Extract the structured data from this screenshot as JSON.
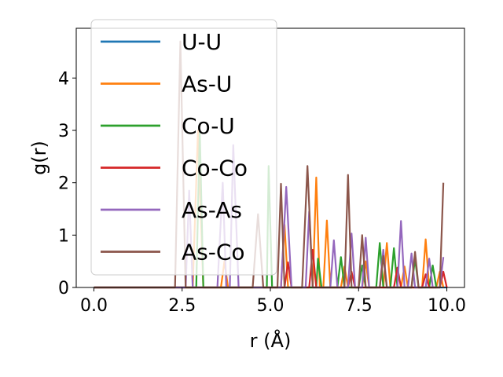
{
  "chart_data": {
    "type": "line",
    "title": "",
    "xlabel": "r (Å)",
    "ylabel": "g(r)",
    "xlim": [
      -0.5,
      10.5
    ],
    "ylim": [
      0,
      4.95
    ],
    "xticks": [
      0.0,
      2.5,
      5.0,
      7.5,
      10.0
    ],
    "xtick_labels": [
      "0.0",
      "2.5",
      "5.0",
      "7.5",
      "10.0"
    ],
    "yticks": [
      0,
      1,
      2,
      3,
      4
    ],
    "ytick_labels": [
      "0",
      "1",
      "2",
      "3",
      "4"
    ],
    "grid": false,
    "legend_position": "upper-left",
    "series": [
      {
        "name": "U-U",
        "color": "#1f77b4",
        "x": [
          0.0,
          2.4,
          2.5,
          10.0
        ],
        "y": [
          0.0,
          0.0,
          0.0,
          0.0
        ]
      },
      {
        "name": "As-U",
        "color": "#ff7f0e",
        "x": [
          0.0,
          2.8,
          2.95,
          3.1,
          3.6,
          3.7,
          3.8,
          5.3,
          5.4,
          5.5,
          6.2,
          6.3,
          6.4,
          6.5,
          6.6,
          6.7,
          7.0,
          7.1,
          7.2,
          7.6,
          7.7,
          7.8,
          8.0,
          8.2,
          8.3,
          8.4,
          8.7,
          8.8,
          8.9,
          9.3,
          9.4,
          9.5,
          9.7,
          9.8,
          9.9
        ],
        "y": [
          0.0,
          0.0,
          3.0,
          0.0,
          0.0,
          0.5,
          0.0,
          0.0,
          1.2,
          0.0,
          0.0,
          2.1,
          0.0,
          0.0,
          1.28,
          0.0,
          0.0,
          0.4,
          0.0,
          0.0,
          0.5,
          0.0,
          0.0,
          0.0,
          0.85,
          0.0,
          0.0,
          0.4,
          0.0,
          0.0,
          0.92,
          0.0,
          0.0,
          0.3,
          0.0
        ]
      },
      {
        "name": "Co-U",
        "color": "#2ca02c",
        "x": [
          0.0,
          2.9,
          3.0,
          3.1,
          4.9,
          4.95,
          5.05,
          6.3,
          6.35,
          6.45,
          6.9,
          7.0,
          7.1,
          7.5,
          7.6,
          7.7,
          8.0,
          8.1,
          8.2,
          8.4,
          8.5,
          8.6,
          9.0,
          9.1,
          9.2,
          9.5,
          9.6,
          9.7
        ],
        "y": [
          0.0,
          0.0,
          3.0,
          0.0,
          0.0,
          2.32,
          0.0,
          0.0,
          0.55,
          0.0,
          0.0,
          0.58,
          0.0,
          0.0,
          0.42,
          0.0,
          0.0,
          0.85,
          0.0,
          0.0,
          0.75,
          0.0,
          0.0,
          0.55,
          0.0,
          0.0,
          0.42,
          0.0
        ]
      },
      {
        "name": "Co-Co",
        "color": "#d62728",
        "x": [
          0.0,
          5.4,
          5.5,
          5.6,
          6.1,
          6.2,
          6.3,
          7.2,
          7.3,
          7.4,
          8.5,
          8.6,
          8.7,
          9.3,
          9.4,
          9.5,
          9.8,
          9.9,
          10.0
        ],
        "y": [
          0.0,
          0.0,
          0.48,
          0.0,
          0.0,
          0.72,
          0.0,
          0.0,
          0.3,
          0.0,
          0.0,
          0.38,
          0.0,
          0.0,
          0.25,
          0.0,
          0.0,
          0.3,
          0.0
        ]
      },
      {
        "name": "As-As",
        "color": "#9467bd",
        "x": [
          0.0,
          2.6,
          2.7,
          2.8,
          3.5,
          3.65,
          3.75,
          3.85,
          3.95,
          4.1,
          5.3,
          5.45,
          5.6,
          6.0,
          6.1,
          6.2,
          6.7,
          6.8,
          6.9,
          7.2,
          7.3,
          7.4,
          7.6,
          7.7,
          7.8,
          8.1,
          8.2,
          8.3,
          8.6,
          8.7,
          8.8,
          8.9,
          9.0,
          9.1,
          9.4,
          9.5,
          9.6,
          9.8,
          9.9
        ],
        "y": [
          0.0,
          0.0,
          1.85,
          0.0,
          0.0,
          2.0,
          0.0,
          0.0,
          2.72,
          0.0,
          0.0,
          1.92,
          0.0,
          0.0,
          1.45,
          0.0,
          0.0,
          0.9,
          0.0,
          0.0,
          1.03,
          0.0,
          0.0,
          0.95,
          0.0,
          0.0,
          0.72,
          0.0,
          0.0,
          1.27,
          0.0,
          0.0,
          0.65,
          0.0,
          0.0,
          0.55,
          0.0,
          0.0,
          0.58
        ]
      },
      {
        "name": "As-Co",
        "color": "#8c564b",
        "x": [
          0.0,
          2.3,
          2.45,
          2.6,
          4.5,
          4.65,
          4.8,
          5.2,
          5.3,
          5.4,
          5.9,
          6.05,
          6.2,
          7.1,
          7.2,
          7.3,
          7.5,
          7.6,
          7.7,
          8.1,
          8.2,
          8.3,
          9.0,
          9.1,
          9.2,
          9.8,
          9.9
        ],
        "y": [
          0.0,
          0.0,
          4.7,
          0.0,
          0.0,
          1.4,
          0.0,
          0.0,
          1.98,
          0.0,
          0.0,
          2.32,
          0.0,
          0.0,
          2.15,
          0.0,
          0.0,
          1.0,
          0.0,
          0.0,
          0.6,
          0.0,
          0.0,
          0.68,
          0.0,
          0.0,
          2.0
        ]
      }
    ]
  }
}
